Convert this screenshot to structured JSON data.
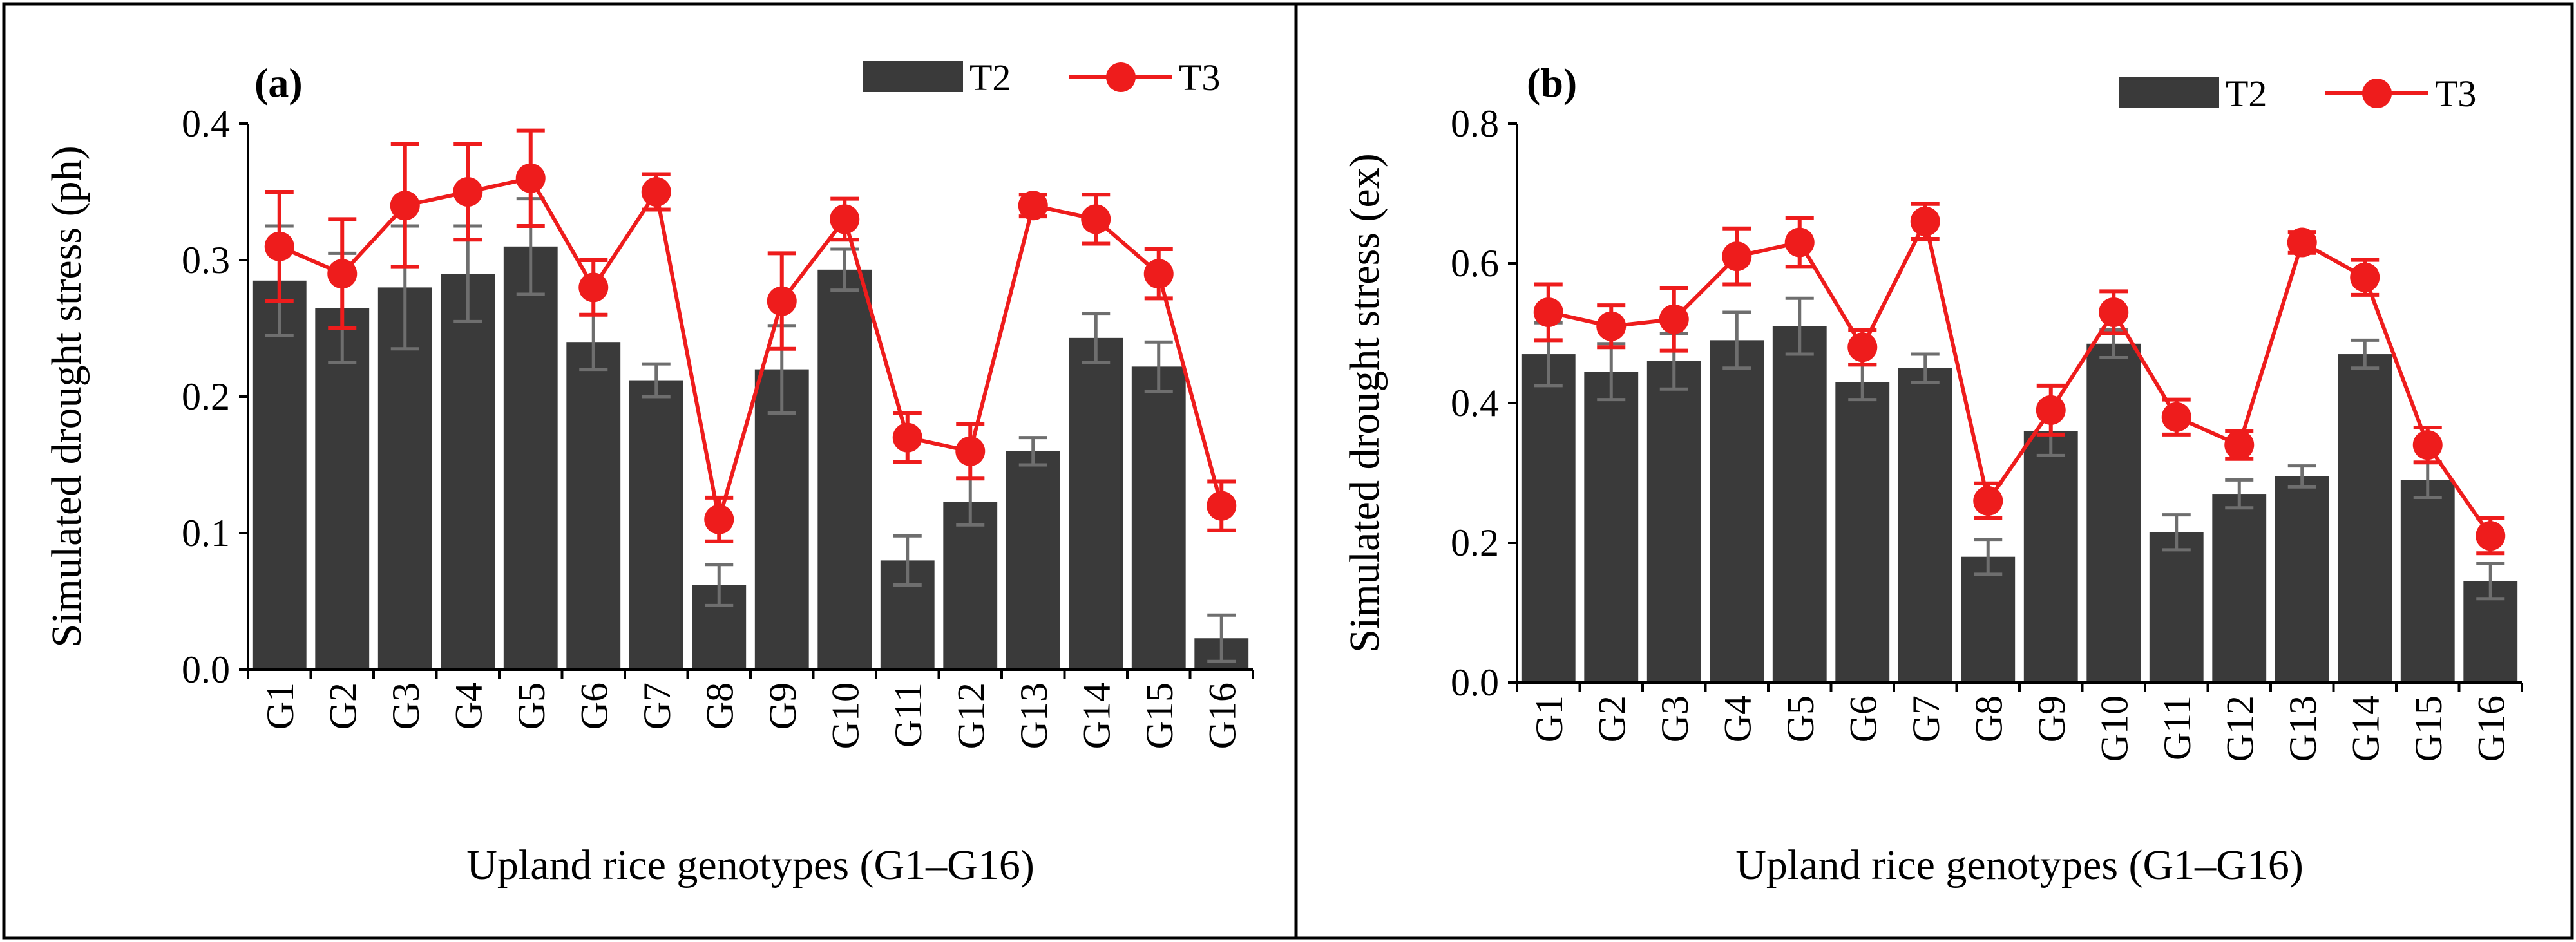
{
  "colors": {
    "t2_bar": "#3a3a3a",
    "t3_line": "#ee1c1c",
    "t2_error": "#6e6e6e",
    "frame": "#000000"
  },
  "chart_data": [
    {
      "type": "bar",
      "panel_label": "(a)",
      "categories": [
        "G1",
        "G2",
        "G3",
        "G4",
        "G5",
        "G6",
        "G7",
        "G8",
        "G9",
        "G10",
        "G11",
        "G12",
        "G13",
        "G14",
        "G15",
        "G16"
      ],
      "series": [
        {
          "name": "T2",
          "kind": "bar",
          "values": [
            0.285,
            0.265,
            0.28,
            0.29,
            0.31,
            0.24,
            0.212,
            0.062,
            0.22,
            0.293,
            0.08,
            0.123,
            0.16,
            0.243,
            0.222,
            0.023
          ],
          "errors": [
            0.04,
            0.04,
            0.045,
            0.035,
            0.035,
            0.02,
            0.012,
            0.015,
            0.032,
            0.015,
            0.018,
            0.017,
            0.01,
            0.018,
            0.018,
            0.017
          ]
        },
        {
          "name": "T3",
          "kind": "line",
          "values": [
            0.31,
            0.29,
            0.34,
            0.35,
            0.36,
            0.28,
            0.35,
            0.11,
            0.27,
            0.33,
            0.17,
            0.16,
            0.34,
            0.33,
            0.29,
            0.12
          ],
          "errors": [
            0.04,
            0.04,
            0.045,
            0.035,
            0.035,
            0.02,
            0.013,
            0.016,
            0.035,
            0.015,
            0.018,
            0.02,
            0.008,
            0.018,
            0.018,
            0.018
          ]
        }
      ],
      "ylabel": "Simulated  drought stress (ph)",
      "xlabel": "Upland rice genotypes  (G1–G16)",
      "ylim": [
        0,
        0.4
      ],
      "yticks": [
        "0.0",
        "0.1",
        "0.2",
        "0.3",
        "0.4"
      ],
      "ytick_values": [
        0,
        0.1,
        0.2,
        0.3,
        0.4
      ],
      "legend": [
        "T2",
        "T3"
      ],
      "legend_position": "top-right",
      "grid": false
    },
    {
      "type": "bar",
      "panel_label": "(b)",
      "categories": [
        "G1",
        "G2",
        "G3",
        "G4",
        "G5",
        "G6",
        "G7",
        "G8",
        "G9",
        "G10",
        "G11",
        "G12",
        "G13",
        "G14",
        "G15",
        "G16"
      ],
      "series": [
        {
          "name": "T2",
          "kind": "bar",
          "values": [
            0.47,
            0.445,
            0.46,
            0.49,
            0.51,
            0.43,
            0.45,
            0.18,
            0.36,
            0.485,
            0.215,
            0.27,
            0.295,
            0.47,
            0.29,
            0.145
          ],
          "errors": [
            0.045,
            0.04,
            0.04,
            0.04,
            0.04,
            0.025,
            0.02,
            0.025,
            0.035,
            0.02,
            0.025,
            0.02,
            0.015,
            0.02,
            0.025,
            0.025
          ]
        },
        {
          "name": "T3",
          "kind": "line",
          "values": [
            0.53,
            0.51,
            0.52,
            0.61,
            0.63,
            0.48,
            0.66,
            0.26,
            0.39,
            0.53,
            0.38,
            0.34,
            0.63,
            0.58,
            0.34,
            0.21
          ],
          "errors": [
            0.04,
            0.03,
            0.045,
            0.04,
            0.035,
            0.025,
            0.025,
            0.025,
            0.035,
            0.03,
            0.025,
            0.02,
            0.015,
            0.025,
            0.025,
            0.025
          ]
        }
      ],
      "ylabel": "Simulated  drought stress (ex)",
      "xlabel": "Upland rice genotypes  (G1–G16)",
      "ylim": [
        0,
        0.8
      ],
      "yticks": [
        "0.0",
        "0.2",
        "0.4",
        "0.6",
        "0.8"
      ],
      "ytick_values": [
        0,
        0.2,
        0.4,
        0.6,
        0.8
      ],
      "legend": [
        "T2",
        "T3"
      ],
      "legend_position": "top-right",
      "grid": false
    }
  ]
}
